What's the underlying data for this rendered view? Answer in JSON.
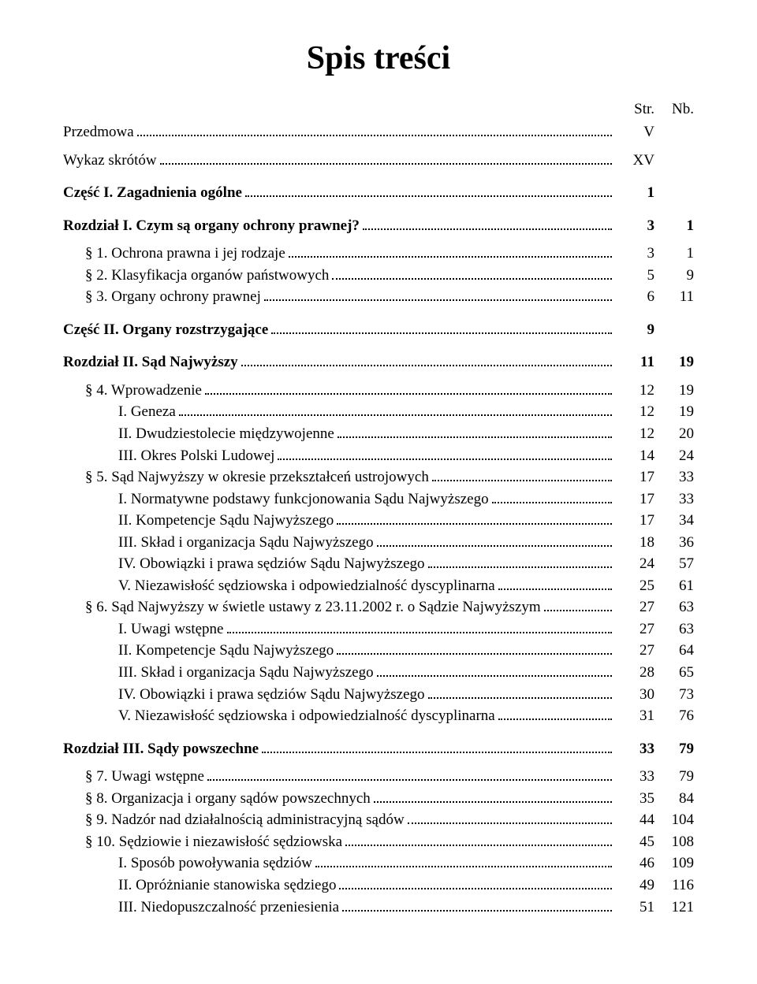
{
  "title": "Spis treści",
  "header": {
    "str": "Str.",
    "nb": "Nb."
  },
  "rows": [
    {
      "label": "Przedmowa",
      "str": "V",
      "nb": "",
      "bold": false,
      "indent": 0,
      "gap": ""
    },
    {
      "label": "Wykaz skrótów",
      "str": "XV",
      "nb": "",
      "bold": false,
      "indent": 0,
      "gap": "small"
    },
    {
      "label": "Część I. Zagadnienia ogólne",
      "str": "1",
      "nb": "",
      "bold": true,
      "indent": 0,
      "gap": "big"
    },
    {
      "label": "Rozdział I. Czym są organy ochrony prawnej?",
      "str": "3",
      "nb": "1",
      "bold": true,
      "indent": 0,
      "gap": "big"
    },
    {
      "label": "§ 1. Ochrona prawna i jej rodzaje",
      "str": "3",
      "nb": "1",
      "bold": false,
      "indent": 1,
      "gap": "small"
    },
    {
      "label": "§ 2. Klasyfikacja organów państwowych",
      "str": "5",
      "nb": "9",
      "bold": false,
      "indent": 1,
      "gap": ""
    },
    {
      "label": "§ 3. Organy ochrony prawnej",
      "str": "6",
      "nb": "11",
      "bold": false,
      "indent": 1,
      "gap": ""
    },
    {
      "label": "Część II. Organy rozstrzygające",
      "str": "9",
      "nb": "",
      "bold": true,
      "indent": 0,
      "gap": "big"
    },
    {
      "label": "Rozdział II. Sąd Najwyższy",
      "str": "11",
      "nb": "19",
      "bold": true,
      "indent": 0,
      "gap": "big"
    },
    {
      "label": "§ 4. Wprowadzenie",
      "str": "12",
      "nb": "19",
      "bold": false,
      "indent": 1,
      "gap": "small"
    },
    {
      "label": "I. Geneza",
      "str": "12",
      "nb": "19",
      "bold": false,
      "indent": 2,
      "gap": ""
    },
    {
      "label": "II. Dwudziestolecie międzywojenne",
      "str": "12",
      "nb": "20",
      "bold": false,
      "indent": 2,
      "gap": ""
    },
    {
      "label": "III. Okres Polski Ludowej",
      "str": "14",
      "nb": "24",
      "bold": false,
      "indent": 2,
      "gap": ""
    },
    {
      "label": "§ 5. Sąd Najwyższy w okresie przekształceń ustrojowych",
      "str": "17",
      "nb": "33",
      "bold": false,
      "indent": 1,
      "gap": ""
    },
    {
      "label": "I. Normatywne podstawy funkcjonowania Sądu Najwyższego",
      "str": "17",
      "nb": "33",
      "bold": false,
      "indent": 2,
      "gap": ""
    },
    {
      "label": "II. Kompetencje Sądu Najwyższego",
      "str": "17",
      "nb": "34",
      "bold": false,
      "indent": 2,
      "gap": ""
    },
    {
      "label": "III. Skład i organizacja Sądu Najwyższego",
      "str": "18",
      "nb": "36",
      "bold": false,
      "indent": 2,
      "gap": ""
    },
    {
      "label": "IV. Obowiązki i prawa sędziów Sądu Najwyższego",
      "str": "24",
      "nb": "57",
      "bold": false,
      "indent": 2,
      "gap": ""
    },
    {
      "label": "V. Niezawisłość sędziowska i odpowiedzialność dyscyplinarna",
      "str": "25",
      "nb": "61",
      "bold": false,
      "indent": 2,
      "gap": ""
    },
    {
      "label": "§ 6. Sąd Najwyższy w świetle ustawy z 23.11.2002 r. o Sądzie Najwyższym",
      "str": "27",
      "nb": "63",
      "bold": false,
      "indent": 1,
      "gap": ""
    },
    {
      "label": "I. Uwagi wstępne",
      "str": "27",
      "nb": "63",
      "bold": false,
      "indent": 2,
      "gap": ""
    },
    {
      "label": "II. Kompetencje Sądu Najwyższego",
      "str": "27",
      "nb": "64",
      "bold": false,
      "indent": 2,
      "gap": ""
    },
    {
      "label": "III. Skład i organizacja Sądu Najwyższego",
      "str": "28",
      "nb": "65",
      "bold": false,
      "indent": 2,
      "gap": ""
    },
    {
      "label": "IV. Obowiązki i prawa sędziów Sądu Najwyższego",
      "str": "30",
      "nb": "73",
      "bold": false,
      "indent": 2,
      "gap": ""
    },
    {
      "label": "V. Niezawisłość sędziowska i odpowiedzialność dyscyplinarna",
      "str": "31",
      "nb": "76",
      "bold": false,
      "indent": 2,
      "gap": ""
    },
    {
      "label": "Rozdział III. Sądy powszechne",
      "str": "33",
      "nb": "79",
      "bold": true,
      "indent": 0,
      "gap": "big"
    },
    {
      "label": "§ 7. Uwagi wstępne",
      "str": "33",
      "nb": "79",
      "bold": false,
      "indent": 1,
      "gap": "small"
    },
    {
      "label": "§ 8. Organizacja i organy sądów powszechnych",
      "str": "35",
      "nb": "84",
      "bold": false,
      "indent": 1,
      "gap": ""
    },
    {
      "label": "§ 9. Nadzór nad działalnością administracyjną sądów",
      "str": "44",
      "nb": "104",
      "bold": false,
      "indent": 1,
      "gap": ""
    },
    {
      "label": "§ 10. Sędziowie i niezawisłość sędziowska",
      "str": "45",
      "nb": "108",
      "bold": false,
      "indent": 1,
      "gap": ""
    },
    {
      "label": "I. Sposób powoływania sędziów",
      "str": "46",
      "nb": "109",
      "bold": false,
      "indent": 2,
      "gap": ""
    },
    {
      "label": "II. Opróżnianie stanowiska sędziego",
      "str": "49",
      "nb": "116",
      "bold": false,
      "indent": 2,
      "gap": ""
    },
    {
      "label": "III. Niedopuszczalność przeniesienia",
      "str": "51",
      "nb": "121",
      "bold": false,
      "indent": 2,
      "gap": ""
    }
  ]
}
